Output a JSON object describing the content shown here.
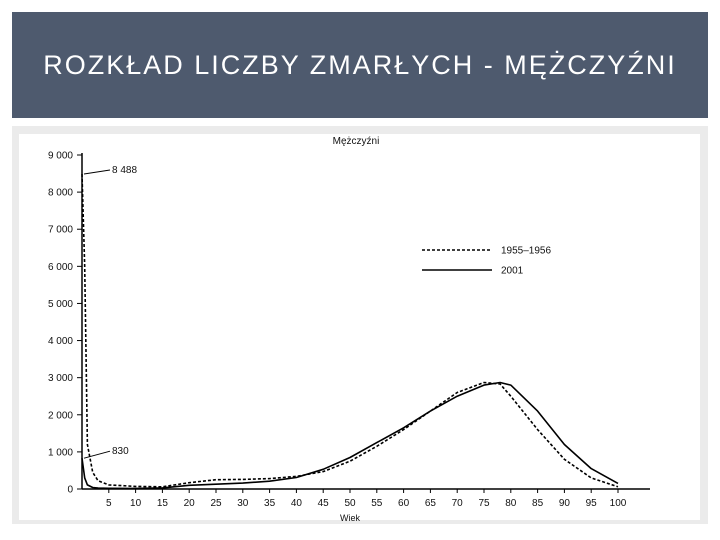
{
  "slide": {
    "title": "ROZKŁAD LICZBY ZMARŁYCH - MĘŻCZYŹNI"
  },
  "chart_data": {
    "type": "line",
    "title": "Mężczyźni",
    "xlabel": "Wiek",
    "ylabel": "",
    "xlim": [
      0,
      100
    ],
    "ylim": [
      0,
      9000
    ],
    "x_ticks": [
      "5",
      "10",
      "15",
      "20",
      "25",
      "30",
      "35",
      "40",
      "45",
      "50",
      "55",
      "60",
      "65",
      "70",
      "75",
      "80",
      "85",
      "90",
      "95",
      "100"
    ],
    "y_ticks": [
      "0",
      "1 000",
      "2 000",
      "3 000",
      "4 000",
      "5 000",
      "6 000",
      "7 000",
      "8 000",
      "9 000"
    ],
    "grid": false,
    "legend": "upper-right",
    "series": [
      {
        "name": "1955–1956",
        "style": "dashed",
        "color": "#000000",
        "x": [
          0,
          0.5,
          1,
          2,
          3,
          5,
          10,
          15,
          20,
          25,
          30,
          35,
          40,
          45,
          50,
          55,
          60,
          65,
          70,
          75,
          78,
          80,
          85,
          90,
          95,
          100
        ],
        "y": [
          8488,
          6000,
          1200,
          450,
          220,
          110,
          70,
          60,
          170,
          250,
          260,
          280,
          340,
          470,
          750,
          1150,
          1600,
          2100,
          2600,
          2870,
          2830,
          2500,
          1600,
          800,
          300,
          60
        ]
      },
      {
        "name": "2001",
        "style": "solid",
        "color": "#000000",
        "x": [
          0,
          0.5,
          1,
          2,
          3,
          5,
          10,
          15,
          20,
          25,
          30,
          35,
          40,
          45,
          50,
          55,
          60,
          65,
          70,
          75,
          78,
          80,
          85,
          90,
          95,
          100
        ],
        "y": [
          830,
          300,
          110,
          40,
          25,
          20,
          15,
          30,
          100,
          130,
          160,
          210,
          310,
          530,
          850,
          1250,
          1650,
          2100,
          2500,
          2800,
          2870,
          2800,
          2100,
          1200,
          550,
          150
        ]
      }
    ],
    "annotations": [
      {
        "text": "8 488",
        "x": 0,
        "y": 8488
      },
      {
        "text": "830",
        "x": 0,
        "y": 830
      }
    ]
  }
}
